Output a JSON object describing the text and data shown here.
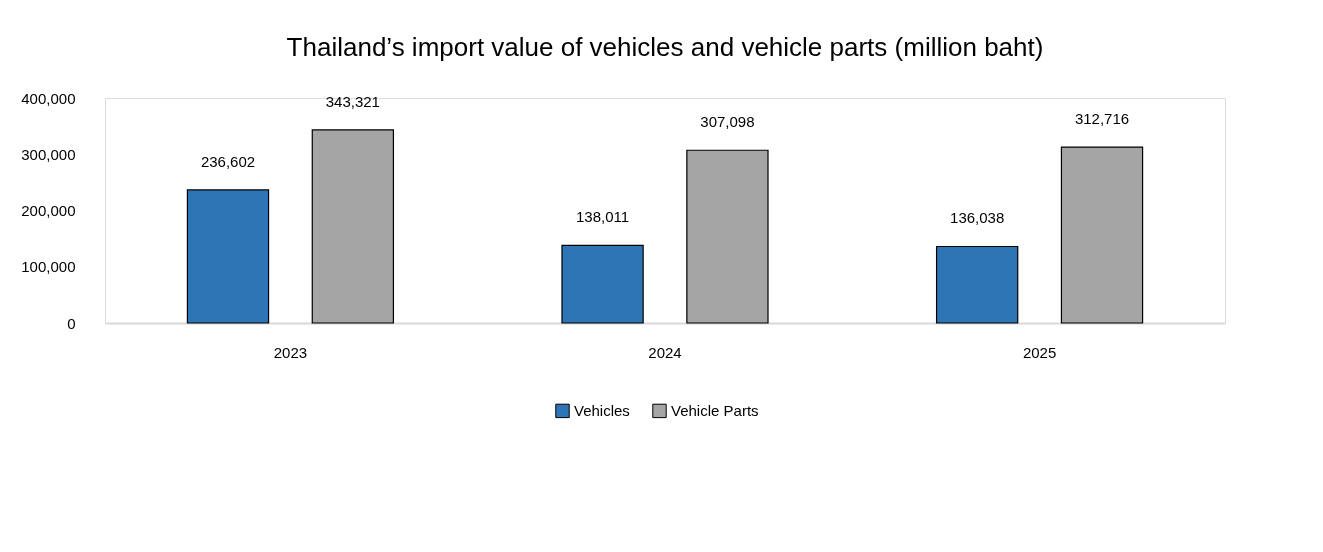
{
  "chart_data": {
    "type": "bar",
    "title": "Thailand’s import value of vehicles and vehicle parts (million baht)",
    "categories": [
      "2023",
      "2024",
      "2025"
    ],
    "series": [
      {
        "name": "Vehicles",
        "color": "#2e75b6",
        "values": [
          236602,
          138011,
          136038
        ],
        "value_labels": [
          "236,602",
          "138,011",
          "136,038"
        ]
      },
      {
        "name": "Vehicle Parts",
        "color": "#a5a5a5",
        "values": [
          343321,
          307098,
          312716
        ],
        "value_labels": [
          "343,321",
          "307,098",
          "312,716"
        ]
      }
    ],
    "ylim": [
      0,
      400000
    ],
    "yticks": [
      0,
      {
        "value": 100000,
        "label": "100,000"
      },
      {
        "value": 200000,
        "label": "200,000"
      },
      {
        "value": 300000,
        "label": "300,000"
      },
      {
        "value": 400000,
        "label": "400,000"
      }
    ],
    "grid": false,
    "legend": "bottom"
  }
}
